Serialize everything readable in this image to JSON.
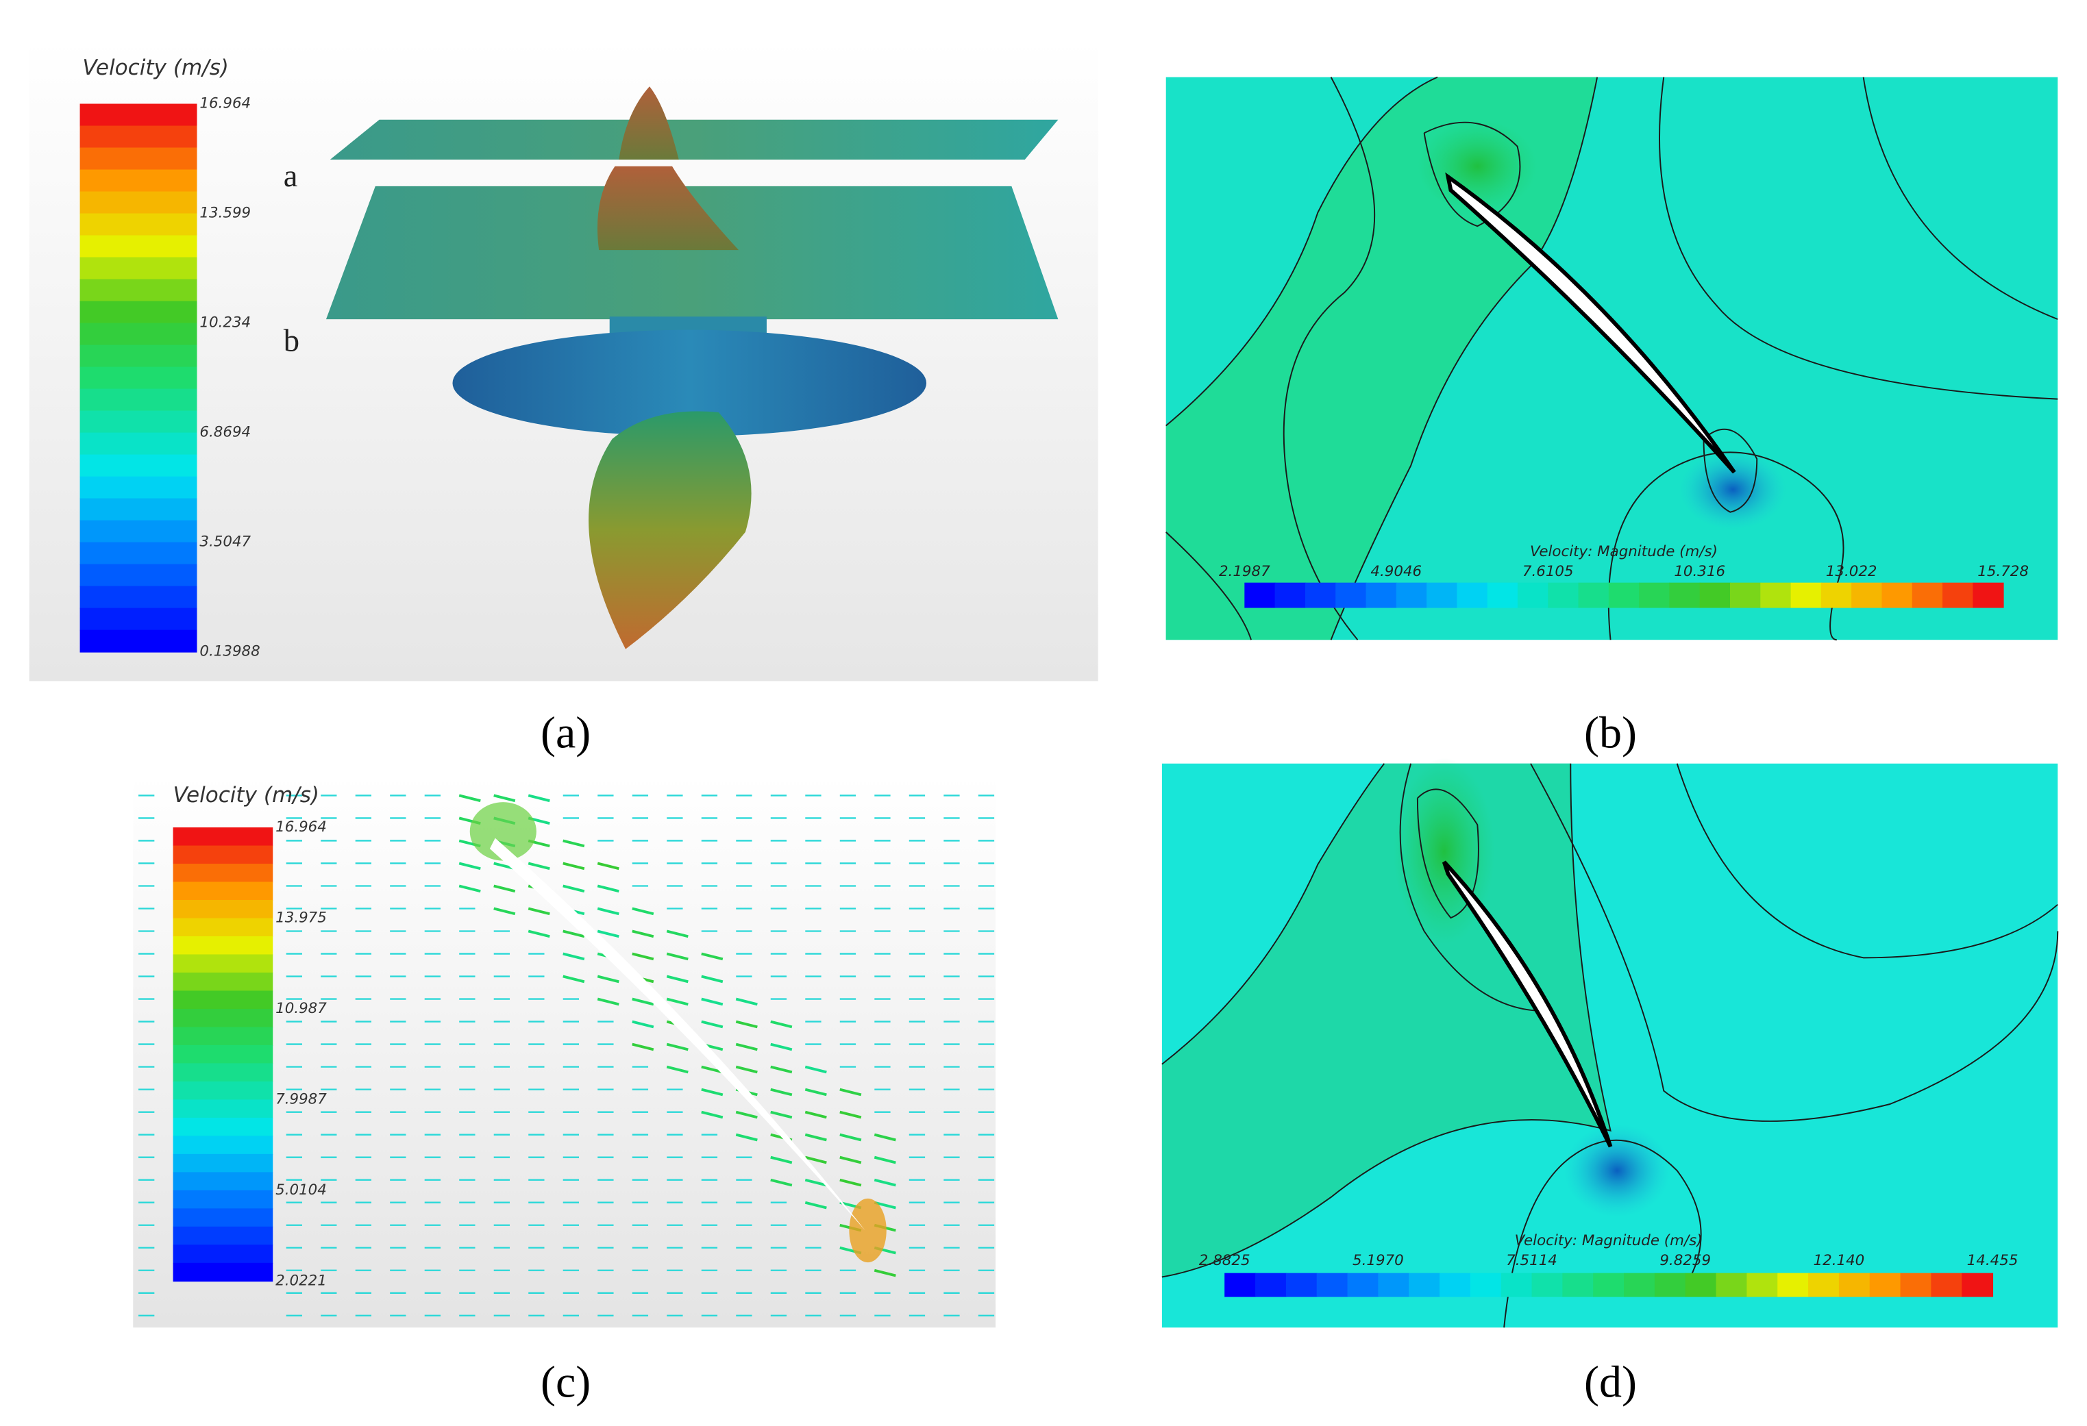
{
  "panels": [
    {
      "caption": "(a)",
      "colorbar": {
        "title": "Velocity (m/s)",
        "ticks": [
          "16.964",
          "13.599",
          "10.234",
          "6.8694",
          "3.5047",
          "0.13988"
        ]
      },
      "plane_labels": [
        "a",
        "b"
      ]
    },
    {
      "caption": "(b)",
      "colorbar": {
        "title": "Velocity: Magnitude (m/s)",
        "ticks": [
          "2.1987",
          "4.9046",
          "7.6105",
          "10.316",
          "13.022",
          "15.728"
        ]
      }
    },
    {
      "caption": "(c)",
      "colorbar": {
        "title": "Velocity (m/s)",
        "ticks": [
          "16.964",
          "13.975",
          "10.987",
          "7.9987",
          "5.0104",
          "2.0221"
        ]
      }
    },
    {
      "caption": "(d)",
      "colorbar": {
        "title": "Velocity: Magnitude (m/s)",
        "ticks": [
          "2.8825",
          "5.1970",
          "7.5114",
          "9.8259",
          "12.140",
          "14.455"
        ]
      }
    }
  ]
}
